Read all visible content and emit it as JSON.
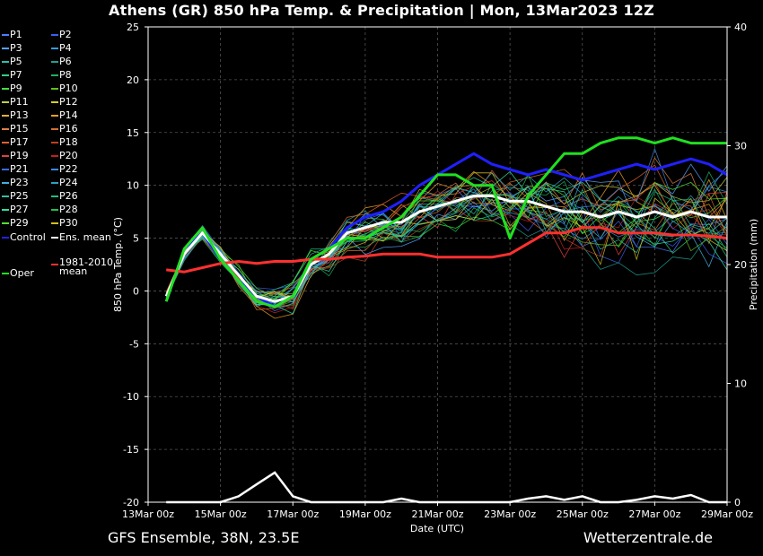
{
  "title": "Athens  (GR)  850 hPa Temp. & Precipitation | Mon, 13Mar2023 12Z",
  "footer": {
    "model": "GFS Ensemble, 38N, 23.5E",
    "source": "Wetterzentrale.de"
  },
  "legend": [
    {
      "label": "P1",
      "color": "#4a7dff"
    },
    {
      "label": "P2",
      "color": "#3a5ff0"
    },
    {
      "label": "P3",
      "color": "#5aa0ff"
    },
    {
      "label": "P4",
      "color": "#3a9ad8"
    },
    {
      "label": "P5",
      "color": "#2bbfb0"
    },
    {
      "label": "P6",
      "color": "#20a090"
    },
    {
      "label": "P7",
      "color": "#30d080"
    },
    {
      "label": "P8",
      "color": "#20b060"
    },
    {
      "label": "P9",
      "color": "#40e040"
    },
    {
      "label": "P10",
      "color": "#60c020"
    },
    {
      "label": "P11",
      "color": "#c0d040"
    },
    {
      "label": "P12",
      "color": "#d8d020"
    },
    {
      "label": "P13",
      "color": "#e0b030"
    },
    {
      "label": "P14",
      "color": "#f0a020"
    },
    {
      "label": "P15",
      "color": "#e08040"
    },
    {
      "label": "P16",
      "color": "#d07030"
    },
    {
      "label": "P17",
      "color": "#e06030"
    },
    {
      "label": "P18",
      "color": "#c04020"
    },
    {
      "label": "P19",
      "color": "#e04040"
    },
    {
      "label": "P20",
      "color": "#c02020"
    },
    {
      "label": "P21",
      "color": "#3a6ae0"
    },
    {
      "label": "P22",
      "color": "#3a8ae0"
    },
    {
      "label": "P23",
      "color": "#40b0e0"
    },
    {
      "label": "P24",
      "color": "#30a0c0"
    },
    {
      "label": "P25",
      "color": "#30c0a0"
    },
    {
      "label": "P26",
      "color": "#20c080"
    },
    {
      "label": "P27",
      "color": "#30e0a0"
    },
    {
      "label": "P28",
      "color": "#20c050"
    },
    {
      "label": "P29",
      "color": "#50e030"
    },
    {
      "label": "P30",
      "color": "#d0c020"
    },
    {
      "label": "Control",
      "color": "#2020ff"
    },
    {
      "label": "Ens. mean",
      "color": "#ffffff"
    },
    {
      "label": "1981-2010 mean",
      "color": "#ff3030"
    },
    {
      "label": "Oper",
      "color": "#20e020"
    }
  ],
  "chart_data": {
    "type": "line",
    "xlabel": "Date (UTC)",
    "ylabel": "850 hPa Temp. (°C)",
    "y2label": "Precipitation (mm)",
    "xlim": [
      0,
      16
    ],
    "ylim": [
      -20,
      25
    ],
    "y2lim": [
      0,
      40
    ],
    "xticks": [
      0,
      2,
      4,
      6,
      8,
      10,
      12,
      14,
      16
    ],
    "xtick_labels": [
      "13Mar 00z",
      "15Mar 00z",
      "17Mar 00z",
      "19Mar 00z",
      "21Mar 00z",
      "23Mar 00z",
      "25Mar 00z",
      "27Mar 00z",
      "29Mar 00z"
    ],
    "yticks": [
      -20,
      -15,
      -10,
      -5,
      0,
      5,
      10,
      15,
      20,
      25
    ],
    "y2ticks": [
      0,
      10,
      20,
      30,
      40
    ],
    "grid": true,
    "x": [
      0.5,
      1,
      1.5,
      2,
      2.5,
      3,
      3.5,
      4,
      4.5,
      5,
      5.5,
      6,
      6.5,
      7,
      7.5,
      8,
      8.5,
      9,
      9.5,
      10,
      10.5,
      11,
      11.5,
      12,
      12.5,
      13,
      13.5,
      14,
      14.5,
      15,
      15.5,
      16
    ],
    "series": [
      {
        "name": "Control",
        "color": "#2020ff",
        "width": 3,
        "values": [
          -1,
          4,
          5.5,
          3,
          1,
          -0.5,
          -1.5,
          -0.5,
          3,
          4,
          6,
          7,
          7.5,
          8.5,
          10,
          11,
          12,
          13,
          12,
          11.5,
          11,
          11.5,
          11,
          10.5,
          11,
          11.5,
          12,
          11.5,
          12,
          12.5,
          12,
          11
        ]
      },
      {
        "name": "Ens. mean",
        "color": "#ffffff",
        "width": 3,
        "values": [
          -0.5,
          3.5,
          5.5,
          3.5,
          1.5,
          -0.5,
          -1,
          -0.5,
          2.5,
          3.5,
          5.5,
          6,
          6.5,
          6.5,
          7.5,
          8,
          8.5,
          9,
          9,
          8.5,
          8.5,
          8,
          7.5,
          7.5,
          7,
          7.5,
          7,
          7.5,
          7,
          7.5,
          7,
          7
        ]
      },
      {
        "name": "1981-2010 mean",
        "color": "#ff3030",
        "width": 3,
        "values": [
          2,
          1.8,
          2.2,
          2.6,
          2.8,
          2.6,
          2.8,
          2.8,
          3,
          3,
          3.2,
          3.3,
          3.5,
          3.5,
          3.5,
          3.2,
          3.2,
          3.2,
          3.2,
          3.5,
          4.5,
          5.5,
          5.5,
          6,
          6,
          5.5,
          5.5,
          5.5,
          5.3,
          5.3,
          5.2,
          5
        ]
      },
      {
        "name": "Oper",
        "color": "#20e020",
        "width": 3,
        "values": [
          -1,
          4,
          6,
          3,
          1,
          -1,
          -1.5,
          -0.5,
          3,
          4,
          5,
          5,
          6,
          7,
          9,
          11,
          11,
          10,
          10,
          5,
          9,
          11,
          13,
          13,
          14,
          14.5,
          14.5,
          14,
          14.5,
          14,
          14,
          14
        ]
      }
    ],
    "precipitation": {
      "name": "Ens. mean",
      "color": "#ffffff",
      "x": [
        0.5,
        1,
        1.5,
        2,
        2.5,
        3,
        3.5,
        4,
        4.5,
        5,
        5.5,
        6,
        6.5,
        7,
        7.5,
        8,
        8.5,
        9,
        9.5,
        10,
        10.5,
        11,
        11.5,
        12,
        12.5,
        13,
        13.5,
        14,
        14.5,
        15,
        15.5,
        16
      ],
      "values": [
        0,
        0,
        0,
        0,
        0.5,
        1.5,
        2.5,
        0.5,
        0,
        0,
        0,
        0,
        0,
        0.3,
        0,
        0,
        0,
        0,
        0,
        0,
        0.3,
        0.5,
        0.2,
        0.5,
        0,
        0,
        0.2,
        0.5,
        0.3,
        0.6,
        0,
        0
      ]
    }
  }
}
